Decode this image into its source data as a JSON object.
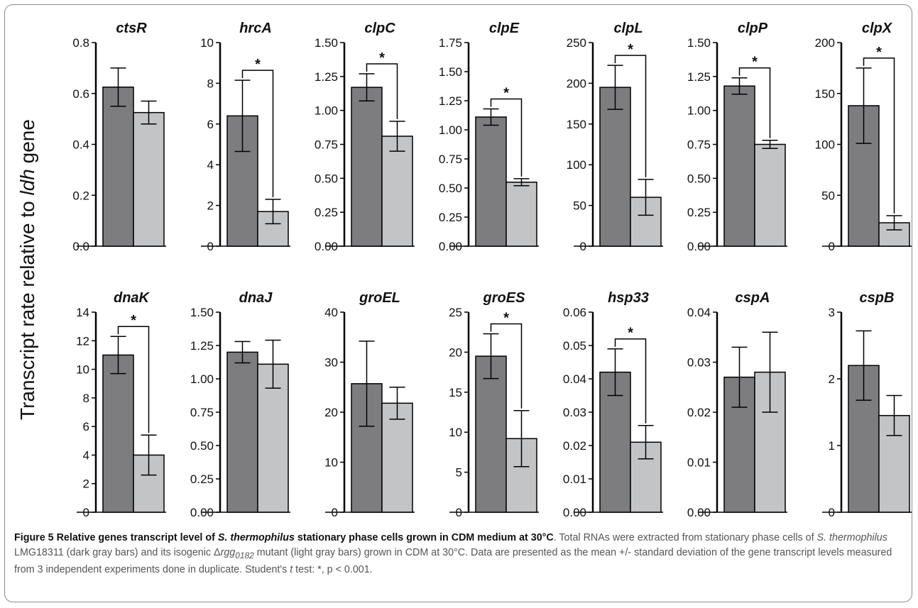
{
  "ylabel": {
    "prefix": "Transcript rate relative to ",
    "italic": "ldh",
    "suffix": " gene"
  },
  "colors": {
    "wild_type": "#7d7d80",
    "mutant": "#c3c4c6",
    "axis": "#000000"
  },
  "caption": {
    "fig_num": "Figure 5",
    "title_1": " Relative genes transcript level of ",
    "title_italic": "S. thermophilus",
    "title_2": " stationary phase cells grown in CDM medium at 30°C",
    "text_1": ". Total RNAs were extracted from stationary phase cells of ",
    "text_italic_1": "S. thermophilus",
    "text_2": " LMG18311 (dark gray bars) and its isogenic Δ",
    "text_italic_2": "rgg",
    "text_sub": "0182",
    "text_3": " mutant (light gray bars) grown in CDM at 30°C. Data are presented as the mean +/- standard deviation of the gene transcript levels measured from 3 independent experiments done in duplicate. Student's ",
    "text_italic_3": "t",
    "text_4": " test: *, p < 0.001."
  },
  "chart_data": [
    {
      "type": "bar",
      "title": "ctsR",
      "categories": [
        "LMG18311",
        "Δrgg0182"
      ],
      "values": [
        0.625,
        0.525
      ],
      "errors": [
        0.075,
        0.045
      ],
      "ylim": [
        0,
        0.8
      ],
      "yticks": [
        "0.0",
        "0.2",
        "0.4",
        "0.6",
        "0.8"
      ],
      "significant": false
    },
    {
      "type": "bar",
      "title": "hrcA",
      "categories": [
        "LMG18311",
        "Δrgg0182"
      ],
      "values": [
        6.4,
        1.7
      ],
      "errors": [
        1.75,
        0.6
      ],
      "ylim": [
        0,
        10
      ],
      "yticks": [
        "0",
        "2",
        "4",
        "6",
        "8",
        "10"
      ],
      "significant": true
    },
    {
      "type": "bar",
      "title": "clpC",
      "categories": [
        "LMG18311",
        "Δrgg0182"
      ],
      "values": [
        1.17,
        0.81
      ],
      "errors": [
        0.1,
        0.11
      ],
      "ylim": [
        0,
        1.5
      ],
      "yticks": [
        "0.00",
        "0.25",
        "0.50",
        "0.75",
        "1.00",
        "1.25",
        "1.50"
      ],
      "significant": true
    },
    {
      "type": "bar",
      "title": "clpE",
      "categories": [
        "LMG18311",
        "Δrgg0182"
      ],
      "values": [
        1.11,
        0.55
      ],
      "errors": [
        0.07,
        0.03
      ],
      "ylim": [
        0,
        1.75
      ],
      "yticks": [
        "0.00",
        "0.25",
        "0.50",
        "0.75",
        "1.00",
        "1.25",
        "1.50",
        "1.75"
      ],
      "significant": true
    },
    {
      "type": "bar",
      "title": "clpL",
      "categories": [
        "LMG18311",
        "Δrgg0182"
      ],
      "values": [
        195,
        60
      ],
      "errors": [
        27,
        22
      ],
      "ylim": [
        0,
        250
      ],
      "yticks": [
        "0",
        "50",
        "100",
        "150",
        "200",
        "250"
      ],
      "significant": true
    },
    {
      "type": "bar",
      "title": "clpP",
      "categories": [
        "LMG18311",
        "Δrgg0182"
      ],
      "values": [
        1.18,
        0.75
      ],
      "errors": [
        0.06,
        0.03
      ],
      "ylim": [
        0,
        1.5
      ],
      "yticks": [
        "0.00",
        "0.25",
        "0.50",
        "0.75",
        "1.00",
        "1.25",
        "1.50"
      ],
      "significant": true
    },
    {
      "type": "bar",
      "title": "clpX",
      "categories": [
        "LMG18311",
        "Δrgg0182"
      ],
      "values": [
        138,
        23
      ],
      "errors": [
        37,
        7
      ],
      "ylim": [
        0,
        200
      ],
      "yticks": [
        "0",
        "50",
        "100",
        "150",
        "200"
      ],
      "significant": true
    },
    {
      "type": "bar",
      "title": "dnaK",
      "categories": [
        "LMG18311",
        "Δrgg0182"
      ],
      "values": [
        11,
        4
      ],
      "errors": [
        1.3,
        1.4
      ],
      "ylim": [
        0,
        14
      ],
      "yticks": [
        "0",
        "2",
        "4",
        "6",
        "8",
        "10",
        "12",
        "14"
      ],
      "significant": true
    },
    {
      "type": "bar",
      "title": "dnaJ",
      "categories": [
        "LMG18311",
        "Δrgg0182"
      ],
      "values": [
        1.2,
        1.11
      ],
      "errors": [
        0.08,
        0.18
      ],
      "ylim": [
        0,
        1.5
      ],
      "yticks": [
        "0.00",
        "0.25",
        "0.50",
        "0.75",
        "1.00",
        "1.25",
        "1.50"
      ],
      "significant": false
    },
    {
      "type": "bar",
      "title": "groEL",
      "categories": [
        "LMG18311",
        "Δrgg0182"
      ],
      "values": [
        25.7,
        21.8
      ],
      "errors": [
        8.5,
        3.2
      ],
      "ylim": [
        0,
        40
      ],
      "yticks": [
        "0",
        "10",
        "20",
        "30",
        "40"
      ],
      "significant": false
    },
    {
      "type": "bar",
      "title": "groES",
      "categories": [
        "LMG18311",
        "Δrgg0182"
      ],
      "values": [
        19.5,
        9.2
      ],
      "errors": [
        2.8,
        3.5
      ],
      "ylim": [
        0,
        25
      ],
      "yticks": [
        "0",
        "5",
        "10",
        "15",
        "20",
        "25"
      ],
      "significant": true
    },
    {
      "type": "bar",
      "title": "hsp33",
      "categories": [
        "LMG18311",
        "Δrgg0182"
      ],
      "values": [
        0.042,
        0.021
      ],
      "errors": [
        0.007,
        0.005
      ],
      "ylim": [
        0,
        0.06
      ],
      "yticks": [
        "0.00",
        "0.01",
        "0.02",
        "0.03",
        "0.04",
        "0.05",
        "0.06"
      ],
      "significant": true
    },
    {
      "type": "bar",
      "title": "cspA",
      "categories": [
        "LMG18311",
        "Δrgg0182"
      ],
      "values": [
        0.027,
        0.028
      ],
      "errors": [
        0.006,
        0.008
      ],
      "ylim": [
        0,
        0.04
      ],
      "yticks": [
        "0.00",
        "0.01",
        "0.02",
        "0.03",
        "0.04"
      ],
      "significant": false
    },
    {
      "type": "bar",
      "title": "cspB",
      "categories": [
        "LMG18311",
        "Δrgg0182"
      ],
      "values": [
        2.2,
        1.45
      ],
      "errors": [
        0.52,
        0.3
      ],
      "ylim": [
        0,
        3
      ],
      "yticks": [
        "0",
        "1",
        "2",
        "3"
      ],
      "significant": false
    }
  ]
}
